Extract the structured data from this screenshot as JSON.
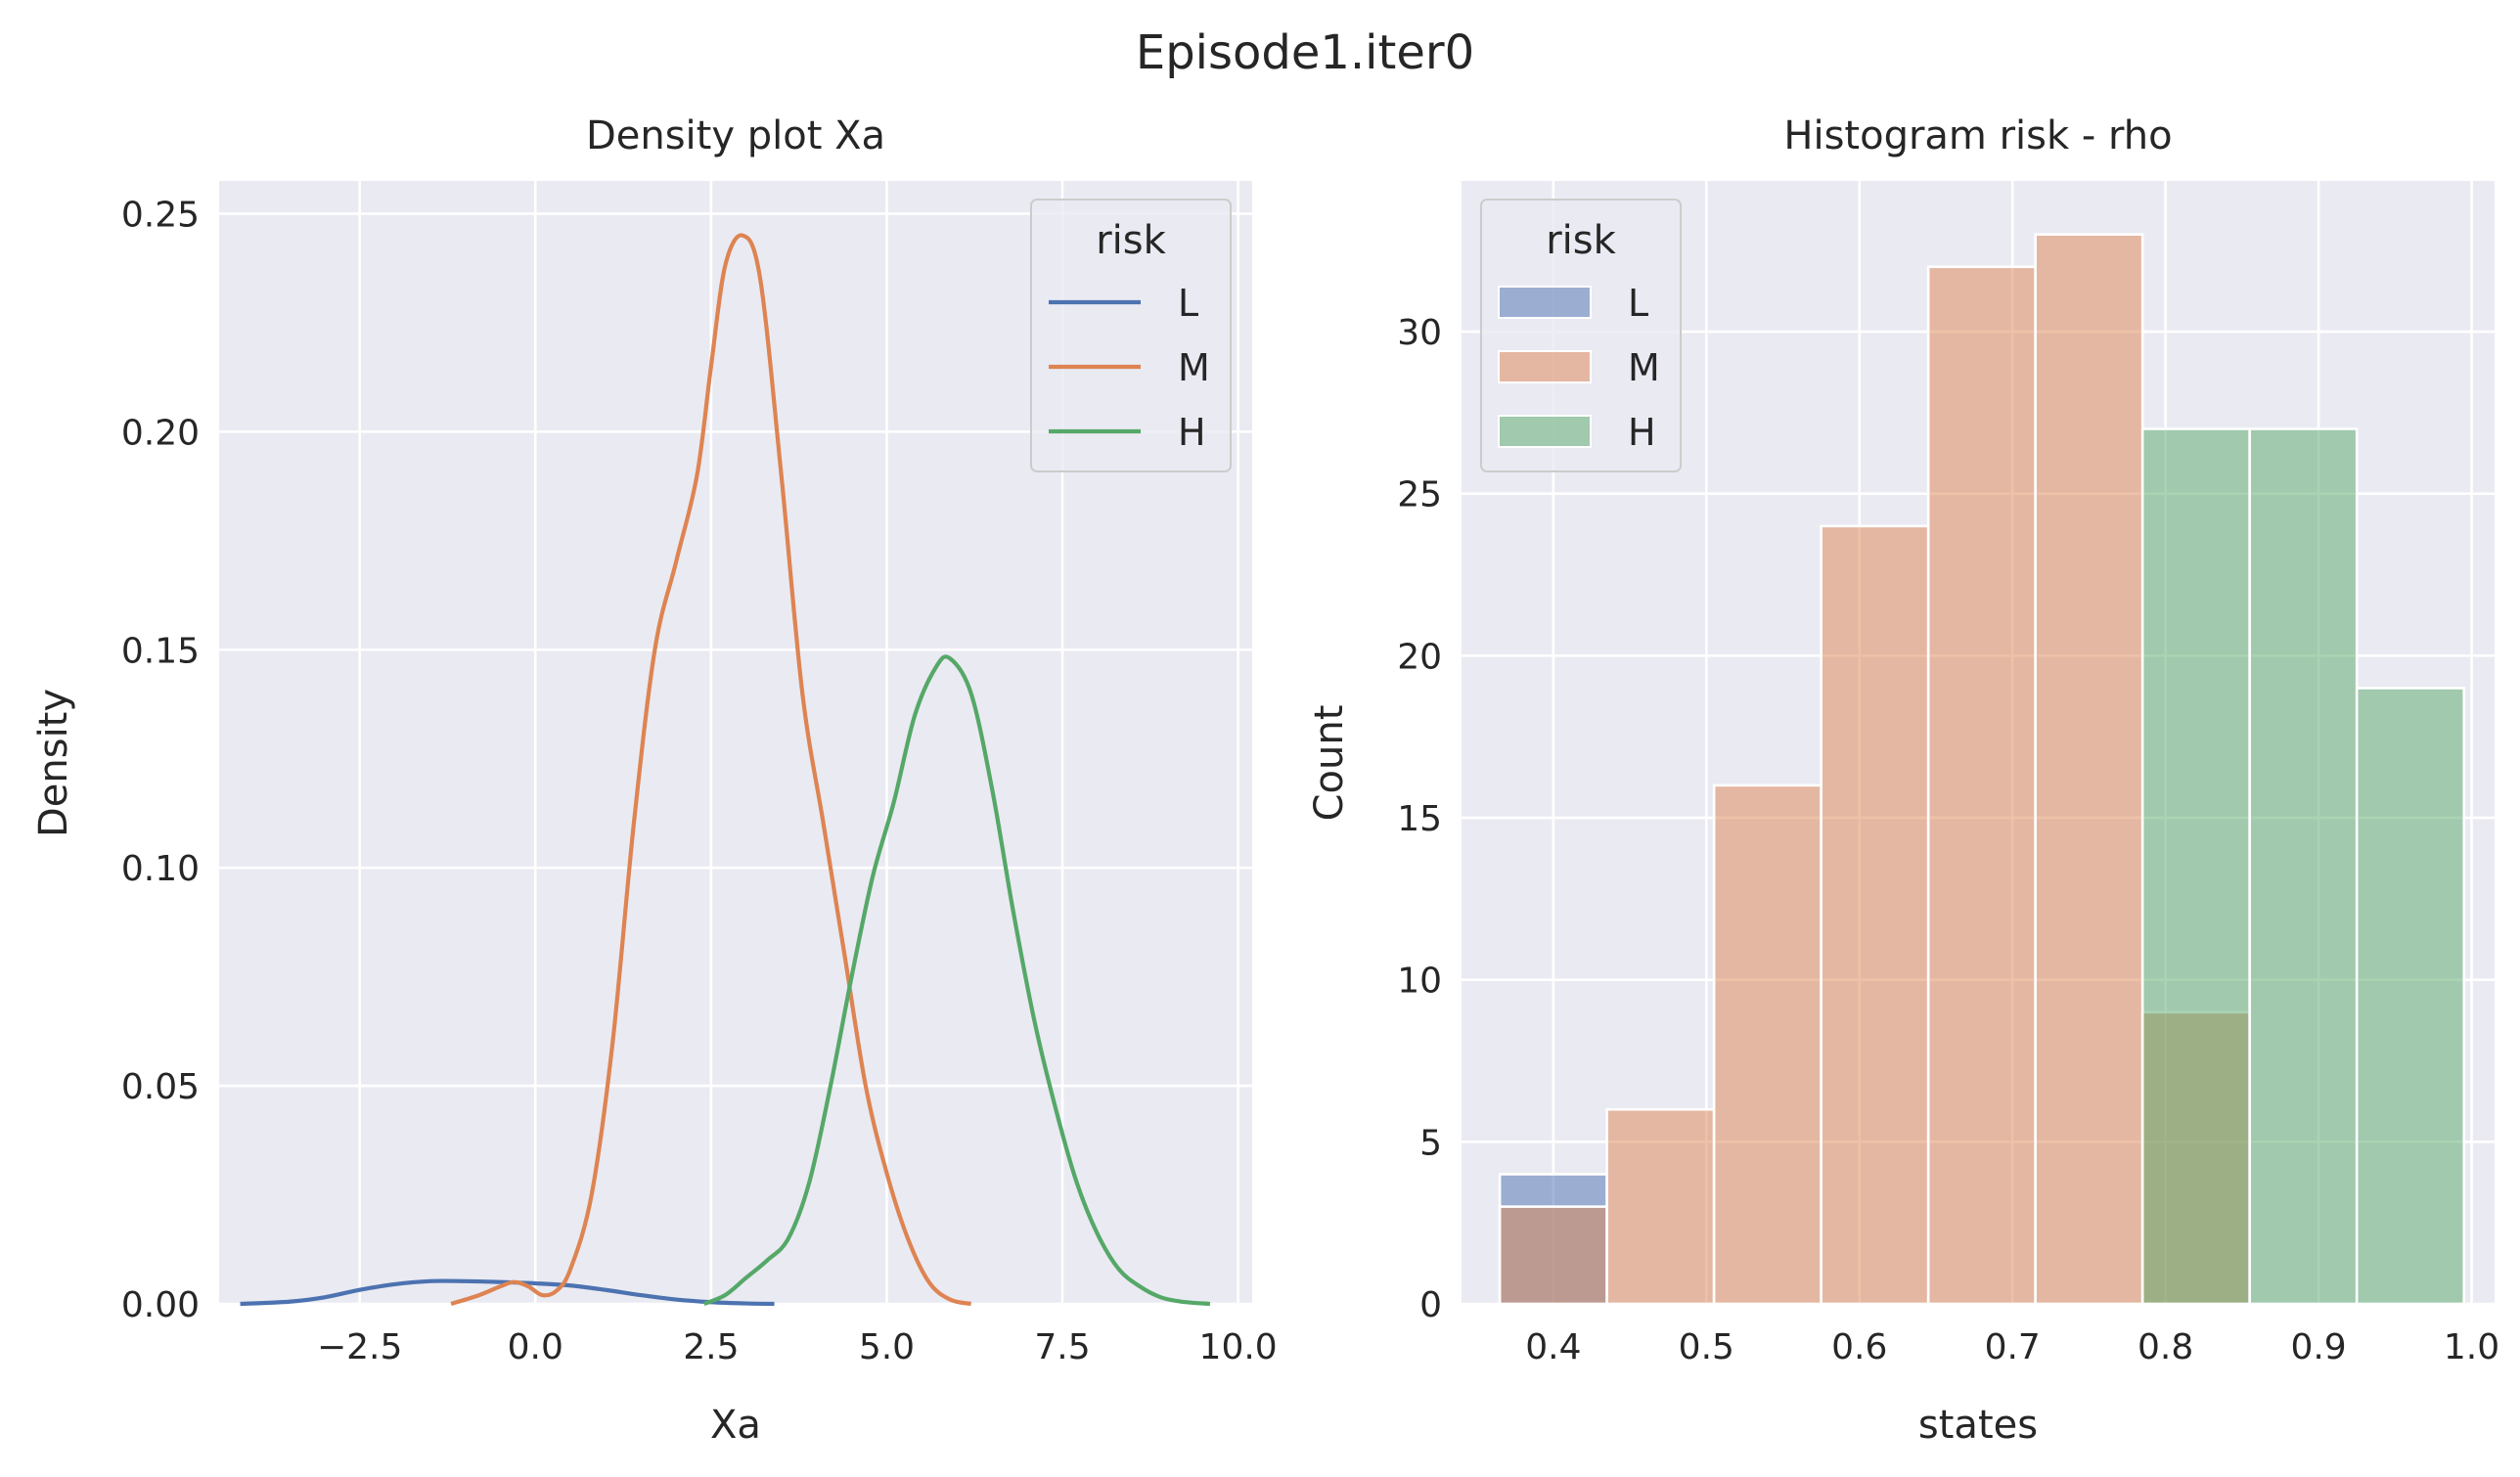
{
  "figure": {
    "title": "Episode1.iter0"
  },
  "chart_data": [
    {
      "type": "line",
      "title": "Density plot Xa",
      "xlabel": "Xa",
      "ylabel": "Density",
      "xlim": [
        -4.5,
        10.2
      ],
      "ylim": [
        0,
        0.2575
      ],
      "xticks": [
        -2.5,
        0.0,
        2.5,
        5.0,
        7.5,
        10.0
      ],
      "xtick_labels": [
        "−2.5",
        "0.0",
        "2.5",
        "5.0",
        "7.5",
        "10.0"
      ],
      "yticks": [
        0.0,
        0.05,
        0.1,
        0.15,
        0.2,
        0.25
      ],
      "ytick_labels": [
        "0.00",
        "0.05",
        "0.10",
        "0.15",
        "0.20",
        "0.25"
      ],
      "grid": true,
      "legend": {
        "title": "risk",
        "position": "top-right"
      },
      "series": [
        {
          "name": "L",
          "color": "#4c72b0",
          "points": [
            [
              -4.2,
              0.0
            ],
            [
              -3.5,
              0.0005
            ],
            [
              -3.0,
              0.0015
            ],
            [
              -2.5,
              0.0032
            ],
            [
              -2.0,
              0.0045
            ],
            [
              -1.5,
              0.0052
            ],
            [
              -1.0,
              0.0052
            ],
            [
              -0.5,
              0.005
            ],
            [
              0.0,
              0.0047
            ],
            [
              0.5,
              0.0042
            ],
            [
              1.0,
              0.0032
            ],
            [
              1.5,
              0.002
            ],
            [
              2.0,
              0.001
            ],
            [
              2.5,
              0.0004
            ],
            [
              3.0,
              0.0001
            ],
            [
              3.4,
              0.0
            ]
          ]
        },
        {
          "name": "M",
          "color": "#dd8452",
          "points": [
            [
              -1.2,
              0.0
            ],
            [
              -0.8,
              0.002
            ],
            [
              -0.5,
              0.004
            ],
            [
              -0.3,
              0.005
            ],
            [
              -0.1,
              0.004
            ],
            [
              0.1,
              0.002
            ],
            [
              0.3,
              0.003
            ],
            [
              0.5,
              0.008
            ],
            [
              0.8,
              0.025
            ],
            [
              1.1,
              0.06
            ],
            [
              1.4,
              0.11
            ],
            [
              1.7,
              0.15
            ],
            [
              2.0,
              0.17
            ],
            [
              2.3,
              0.19
            ],
            [
              2.5,
              0.215
            ],
            [
              2.7,
              0.238
            ],
            [
              2.95,
              0.245
            ],
            [
              3.2,
              0.235
            ],
            [
              3.5,
              0.19
            ],
            [
              3.8,
              0.14
            ],
            [
              4.1,
              0.11
            ],
            [
              4.4,
              0.08
            ],
            [
              4.7,
              0.05
            ],
            [
              5.0,
              0.03
            ],
            [
              5.3,
              0.015
            ],
            [
              5.6,
              0.005
            ],
            [
              5.9,
              0.001
            ],
            [
              6.2,
              0.0
            ]
          ]
        },
        {
          "name": "H",
          "color": "#55a868",
          "points": [
            [
              2.4,
              0.0
            ],
            [
              2.7,
              0.002
            ],
            [
              3.0,
              0.006
            ],
            [
              3.3,
              0.01
            ],
            [
              3.6,
              0.015
            ],
            [
              3.9,
              0.028
            ],
            [
              4.2,
              0.05
            ],
            [
              4.5,
              0.075
            ],
            [
              4.8,
              0.098
            ],
            [
              5.1,
              0.115
            ],
            [
              5.4,
              0.135
            ],
            [
              5.7,
              0.146
            ],
            [
              5.9,
              0.148
            ],
            [
              6.2,
              0.14
            ],
            [
              6.5,
              0.118
            ],
            [
              6.8,
              0.09
            ],
            [
              7.1,
              0.065
            ],
            [
              7.4,
              0.045
            ],
            [
              7.7,
              0.028
            ],
            [
              8.0,
              0.016
            ],
            [
              8.3,
              0.008
            ],
            [
              8.6,
              0.004
            ],
            [
              8.9,
              0.0015
            ],
            [
              9.2,
              0.0005
            ],
            [
              9.6,
              0.0
            ]
          ]
        }
      ]
    },
    {
      "type": "bar",
      "title": "Histogram risk - rho",
      "xlabel": "states",
      "ylabel": "Count",
      "xlim": [
        0.34,
        1.015
      ],
      "ylim": [
        0,
        34.65
      ],
      "xticks": [
        0.4,
        0.5,
        0.6,
        0.7,
        0.8,
        0.9,
        1.0
      ],
      "xtick_labels": [
        "0.4",
        "0.5",
        "0.6",
        "0.7",
        "0.8",
        "0.9",
        "1.0"
      ],
      "yticks": [
        0,
        5,
        10,
        15,
        20,
        25,
        30
      ],
      "ytick_labels": [
        "0",
        "5",
        "10",
        "15",
        "20",
        "25",
        "30"
      ],
      "grid": true,
      "legend": {
        "title": "risk",
        "position": "top-left"
      },
      "bin_edges": [
        0.365,
        0.435,
        0.505,
        0.575,
        0.645,
        0.715,
        0.785,
        0.855,
        0.925,
        0.995
      ],
      "series": [
        {
          "name": "L",
          "color": "#4c72b0",
          "counts": [
            4,
            0,
            0,
            0,
            0,
            0,
            0,
            0,
            0
          ]
        },
        {
          "name": "M",
          "color": "#dd8452",
          "counts": [
            3,
            6,
            16,
            24,
            32,
            33,
            9,
            0,
            0
          ]
        },
        {
          "name": "H",
          "color": "#55a868",
          "counts": [
            0,
            0,
            0,
            0,
            0,
            0,
            27,
            27,
            19
          ]
        }
      ]
    }
  ]
}
